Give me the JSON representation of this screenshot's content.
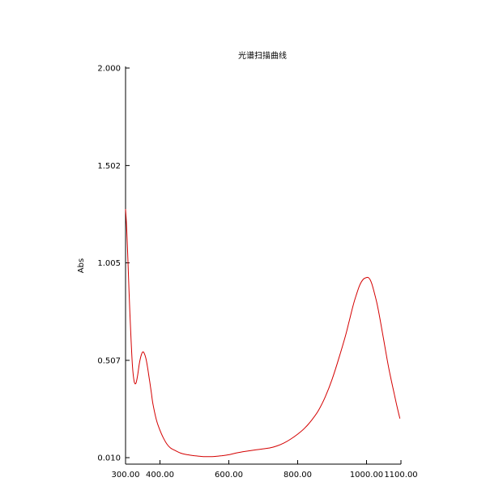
{
  "chart_data": {
    "type": "line",
    "title": "光谱扫描曲线",
    "xlabel": "",
    "ylabel": "Abs",
    "xlim": [
      300,
      1100
    ],
    "ylim": [
      0.01,
      2.0
    ],
    "x_ticks": [
      300,
      400,
      600,
      800,
      1000,
      1100
    ],
    "x_tick_labels": [
      "300.00",
      "400.00",
      "600.00",
      "800.00",
      "1000.00",
      "1100.00"
    ],
    "y_ticks": [
      0.01,
      0.507,
      1.005,
      1.502,
      2.0
    ],
    "y_tick_labels": [
      "0.010",
      "0.507",
      "1.005",
      "1.502",
      "2.000"
    ],
    "grid": false,
    "line_color": "#d40000",
    "series": [
      {
        "x": [
          300,
          303,
          307,
          310,
          315,
          320,
          325,
          330,
          335,
          340,
          345,
          350,
          355,
          360,
          365,
          370,
          375,
          380,
          390,
          400,
          410,
          420,
          430,
          440,
          460,
          480,
          500,
          520,
          540,
          560,
          580,
          600,
          620,
          640,
          660,
          680,
          700,
          720,
          740,
          760,
          780,
          800,
          820,
          840,
          860,
          880,
          900,
          920,
          940,
          950,
          960,
          970,
          980,
          990,
          1000,
          1005,
          1010,
          1015,
          1020,
          1030,
          1040,
          1050,
          1060,
          1070,
          1080,
          1090,
          1097
        ],
        "y": [
          1.28,
          1.19,
          1.01,
          0.86,
          0.65,
          0.48,
          0.4,
          0.39,
          0.43,
          0.49,
          0.53,
          0.55,
          0.54,
          0.51,
          0.46,
          0.4,
          0.34,
          0.28,
          0.2,
          0.15,
          0.11,
          0.08,
          0.06,
          0.05,
          0.033,
          0.025,
          0.02,
          0.016,
          0.015,
          0.016,
          0.02,
          0.025,
          0.033,
          0.04,
          0.045,
          0.05,
          0.055,
          0.06,
          0.07,
          0.085,
          0.105,
          0.13,
          0.16,
          0.2,
          0.25,
          0.32,
          0.41,
          0.52,
          0.64,
          0.71,
          0.78,
          0.84,
          0.89,
          0.92,
          0.93,
          0.93,
          0.92,
          0.9,
          0.87,
          0.8,
          0.71,
          0.61,
          0.51,
          0.42,
          0.34,
          0.26,
          0.21
        ]
      }
    ]
  }
}
